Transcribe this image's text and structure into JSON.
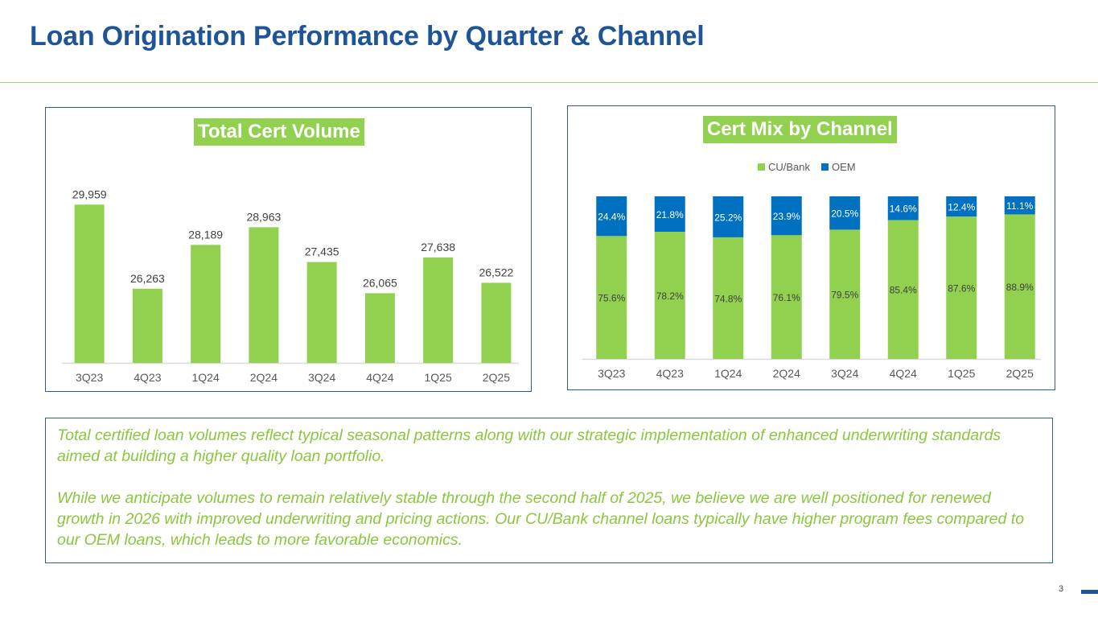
{
  "page": {
    "title": "Loan Origination Performance by Quarter & Channel",
    "page_number": "3",
    "colors": {
      "title_blue": "#1f5597",
      "green": "#92d050",
      "oem_blue": "#0070c0",
      "note_green": "#8cc63f"
    }
  },
  "note": {
    "paragraphs": [
      "Total certified loan volumes reflect typical seasonal patterns along with our strategic implementation of enhanced underwriting standards aimed at building a higher quality loan portfolio.",
      "While we anticipate volumes to remain relatively stable through the second half of 2025, we believe we are well positioned for renewed growth in 2026 with improved underwriting and pricing actions. Our CU/Bank channel loans typically have higher program fees compared to our OEM loans, which leads to more favorable economics."
    ]
  },
  "chart_data": [
    {
      "type": "bar",
      "title": "Total Cert Volume",
      "categories": [
        "3Q23",
        "4Q23",
        "1Q24",
        "2Q24",
        "3Q24",
        "4Q24",
        "1Q25",
        "2Q25"
      ],
      "values": [
        29959,
        26263,
        28189,
        28963,
        27435,
        26065,
        27638,
        26522
      ],
      "labels": [
        "29,959",
        "26,263",
        "28,189",
        "28,963",
        "27,435",
        "26,065",
        "27,638",
        "26,522"
      ],
      "xlabel": "",
      "ylabel": "",
      "ylim": [
        23000,
        30500
      ],
      "grid": false,
      "color": "#92d050"
    },
    {
      "type": "bar",
      "stacked": true,
      "title": "Cert Mix by Channel",
      "categories": [
        "3Q23",
        "4Q23",
        "1Q24",
        "2Q24",
        "3Q24",
        "4Q24",
        "1Q25",
        "2Q25"
      ],
      "series": [
        {
          "name": "CU/Bank",
          "color": "#92d050",
          "values": [
            75.6,
            78.2,
            74.8,
            76.1,
            79.5,
            85.4,
            87.6,
            88.9
          ]
        },
        {
          "name": "OEM",
          "color": "#0070c0",
          "values": [
            24.4,
            21.8,
            25.2,
            23.9,
            20.5,
            14.6,
            12.4,
            11.1
          ]
        }
      ],
      "value_format": "percent",
      "legend": "top-center",
      "ylim": [
        0,
        100
      ],
      "grid": false
    }
  ]
}
